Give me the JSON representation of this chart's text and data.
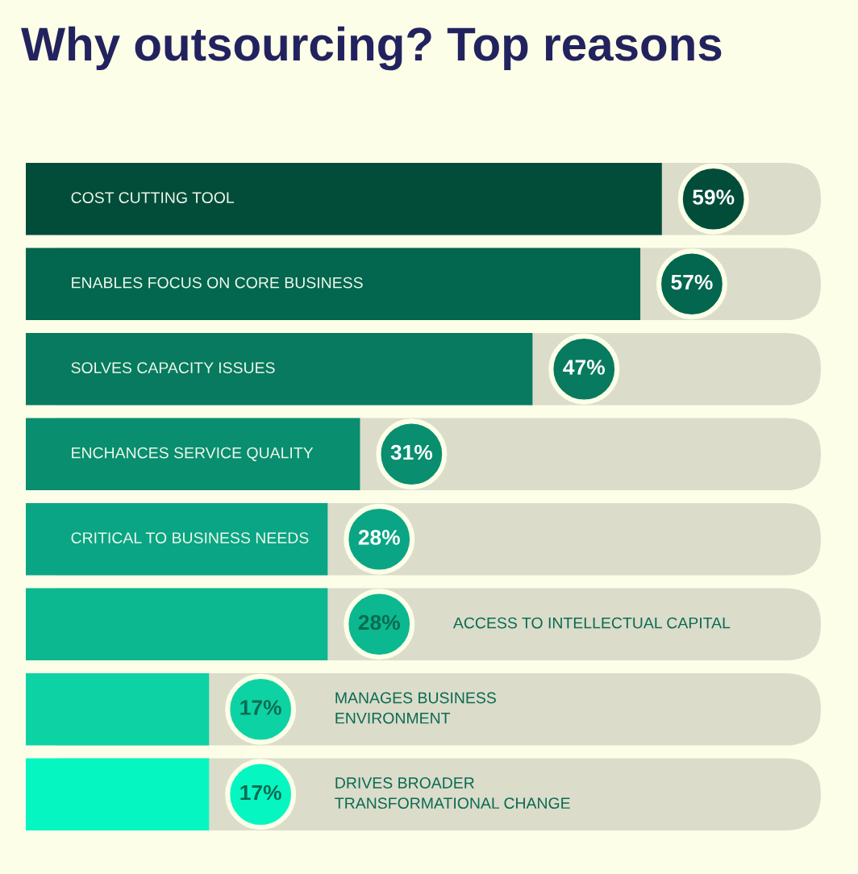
{
  "chart_data": {
    "type": "bar",
    "orientation": "horizontal",
    "title": "Why outsourcing? Top reasons",
    "categories": [
      "COST CUTTING TOOL",
      "ENABLES FOCUS ON CORE BUSINESS",
      "SOLVES CAPACITY ISSUES",
      "ENCHANCES SERVICE QUALITY",
      "CRITICAL TO BUSINESS NEEDS",
      "ACCESS TO INTELLECTUAL CAPITAL",
      "MANAGES BUSINESS\nENVIRONMENT",
      "DRIVES BROADER\nTRANSFORMATIONAL CHANGE"
    ],
    "values": [
      59,
      57,
      47,
      31,
      28,
      28,
      17,
      17
    ],
    "colors": [
      "#024d3a",
      "#03664f",
      "#077a5f",
      "#098e6f",
      "#0aa584",
      "#0cb88f",
      "#0dd3a4",
      "#06f6c2"
    ],
    "value_labels": [
      "59%",
      "57%",
      "47%",
      "31%",
      "28%",
      "28%",
      "17%",
      "17%"
    ],
    "tick_labels": "y"
  }
}
